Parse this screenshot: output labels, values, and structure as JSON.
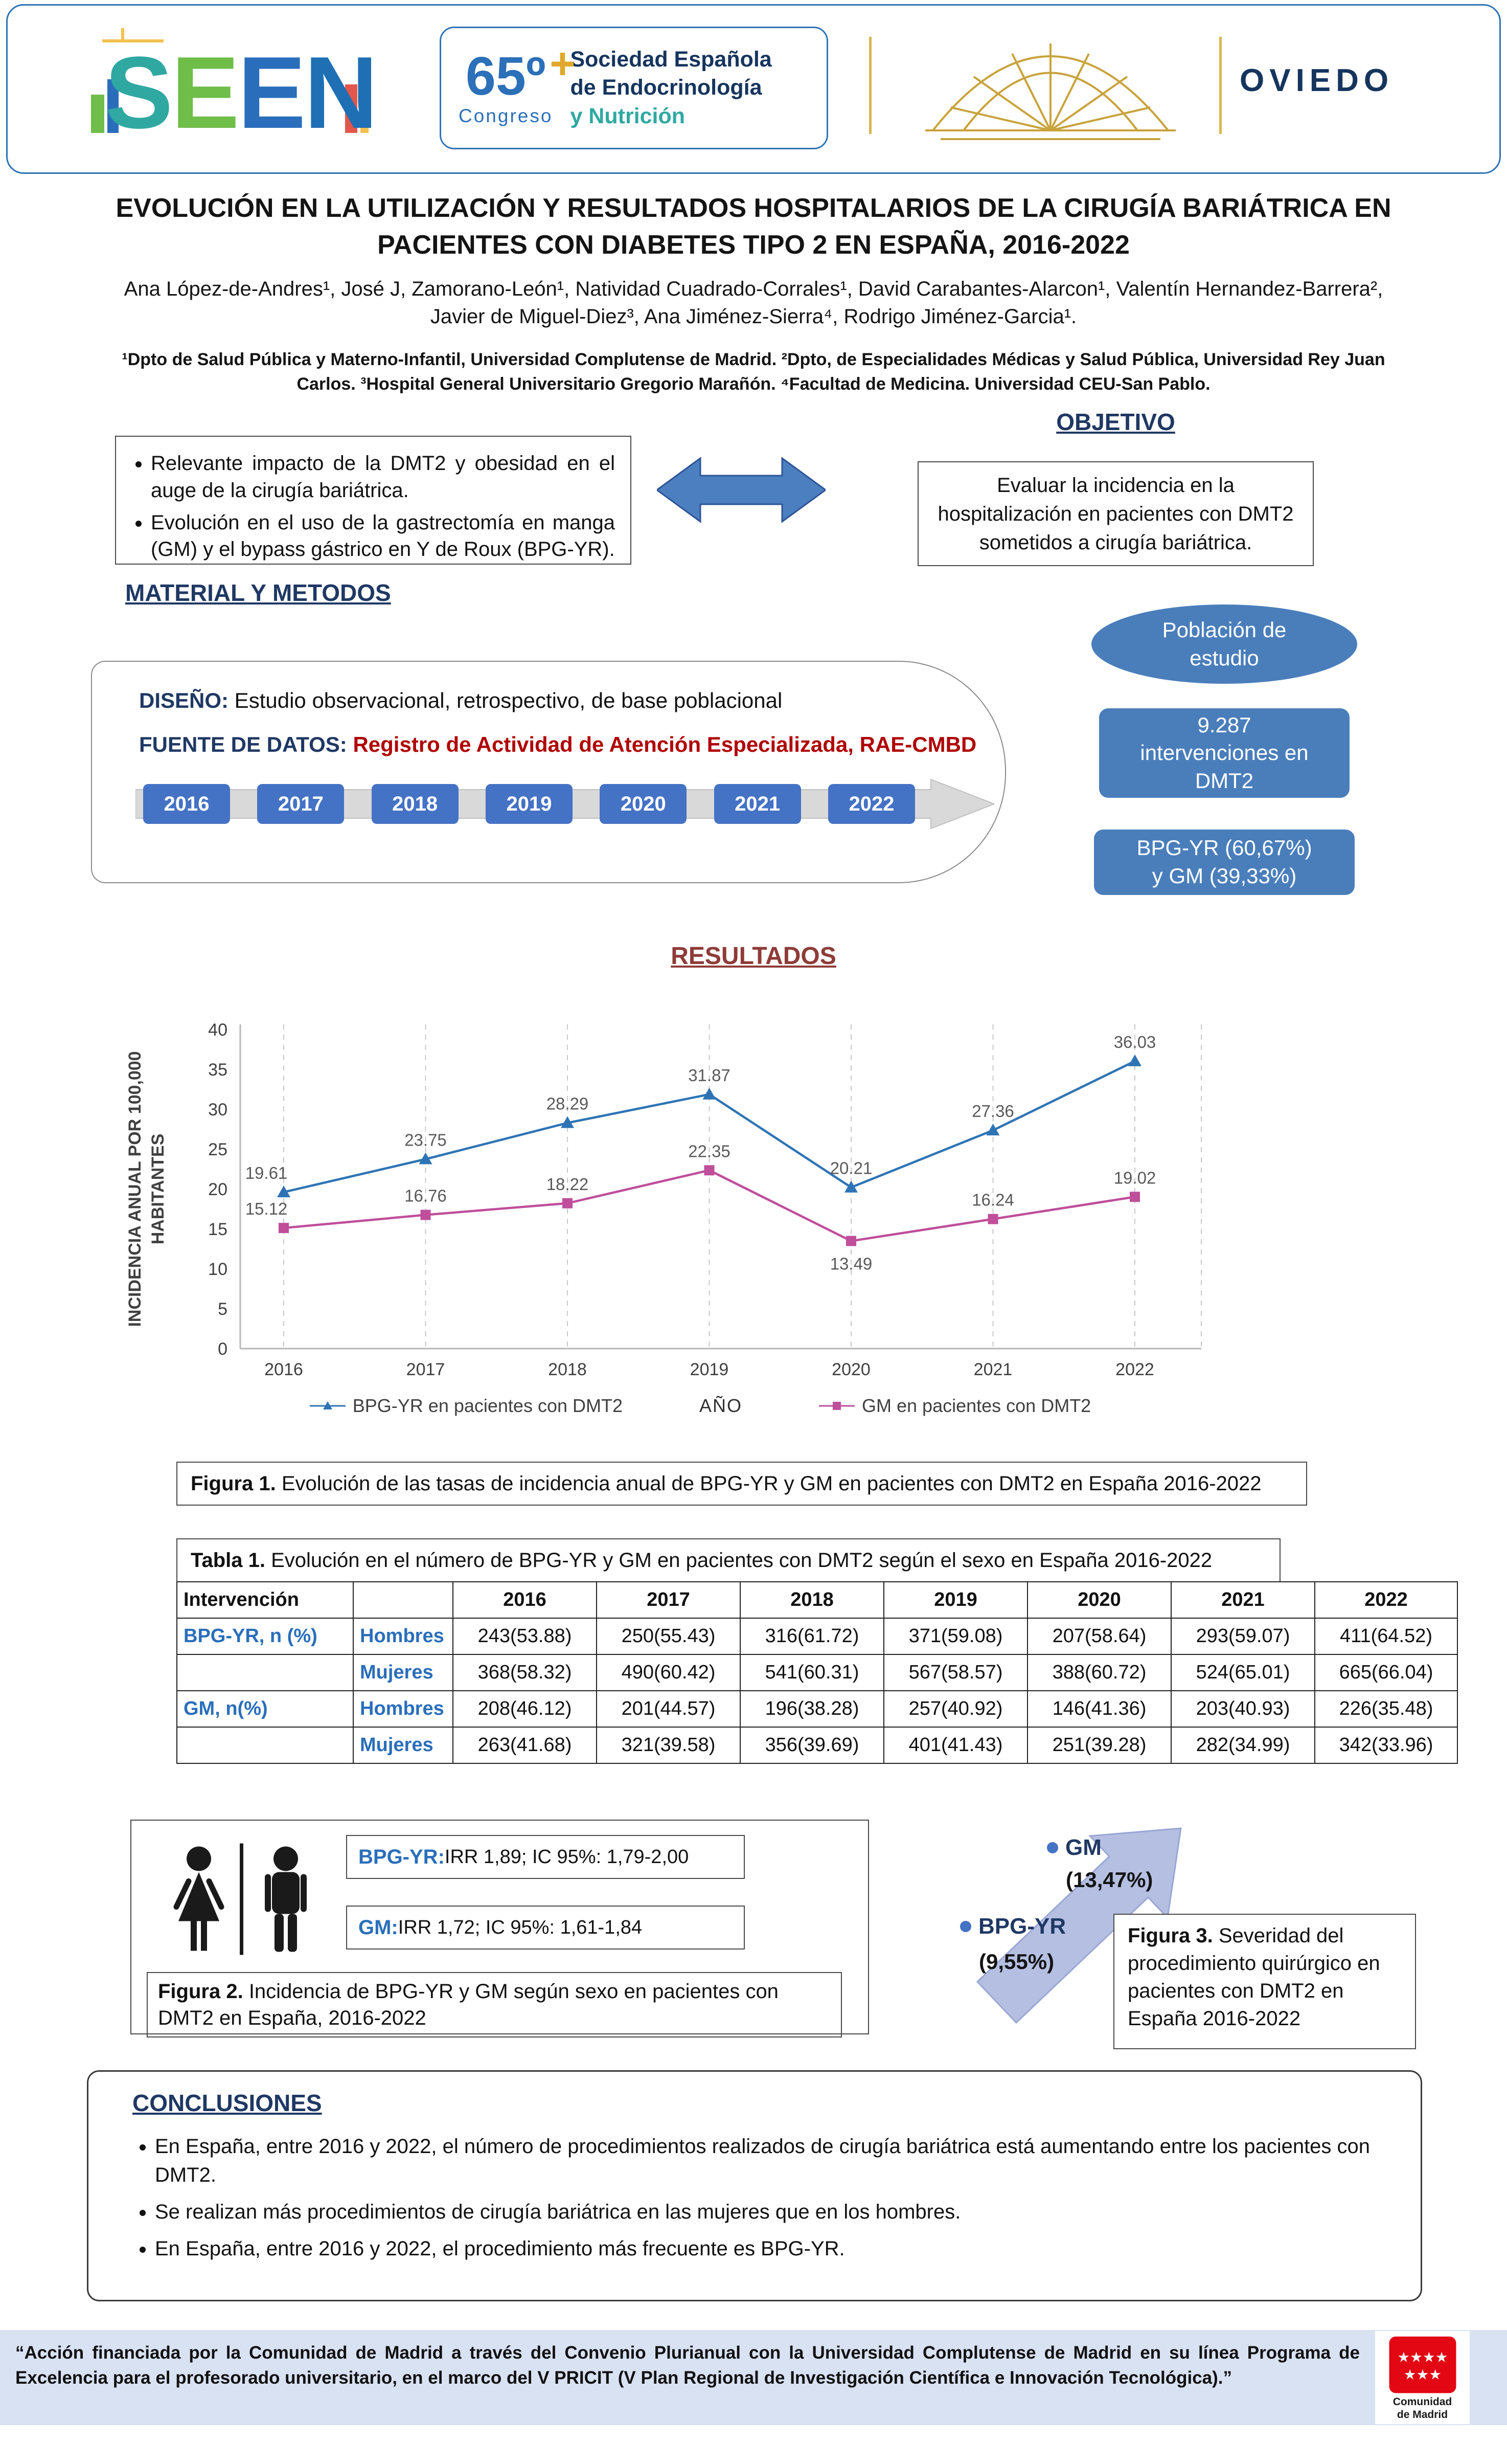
{
  "header": {
    "seen": "SEEN",
    "congress_number": "65º",
    "plus_glyph": "+",
    "congress_word": "Congreso",
    "society_line1": "Sociedad Española",
    "society_line2": "de Endocrinología",
    "society_line3": "y Nutrición",
    "city": "OVIEDO"
  },
  "title_block": {
    "line1": "EVOLUCIÓN EN LA UTILIZACIÓN Y RESULTADOS HOSPITALARIOS DE LA CIRUGÍA BARIÁTRICA EN",
    "line2": "PACIENTES CON DIABETES TIPO 2 EN ESPAÑA, 2016-2022",
    "authors": "Ana López-de-Andres¹, José J, Zamorano-León¹, Natividad Cuadrado-Corrales¹, David Carabantes-Alarcon¹, Valentín Hernandez-Barrera², Javier de Miguel-Diez³, Ana Jiménez-Sierra⁴, Rodrigo Jiménez-Garcia¹.",
    "affiliations": "¹Dpto de Salud Pública y Materno-Infantil, Universidad Complutense de Madrid. ²Dpto, de Especialidades Médicas y Salud Pública, Universidad Rey Juan Carlos. ³Hospital General Universitario Gregorio Marañón. ⁴Facultad de Medicina. Universidad CEU-San Pablo."
  },
  "intro": {
    "bullets": [
      "Relevante impacto de la DMT2 y obesidad en el auge de la cirugía bariátrica.",
      "Evolución en el uso de la gastrectomía en manga (GM) y el bypass gástrico en Y de Roux (BPG-YR)."
    ]
  },
  "objective": {
    "heading": "OBJETIVO",
    "text": "Evaluar la incidencia en la hospitalización en pacientes con DMT2 sometidos a cirugía bariátrica."
  },
  "methods": {
    "heading": "MATERIAL Y METODOS",
    "design_label": "DISEÑO:",
    "design_text": " Estudio observacional, retrospectivo, de base poblacional",
    "source_label": "FUENTE DE DATOS:",
    "source_text": " Registro de Actividad de Atención Especializada, RAE-CMBD",
    "years": [
      "2016",
      "2017",
      "2018",
      "2019",
      "2020",
      "2021",
      "2022"
    ]
  },
  "population": {
    "ellipse": "Población de estudio",
    "box1": "9.287 intervenciones en DMT2",
    "box2": "BPG-YR (60,67%) y GM (39,33%)"
  },
  "results_heading": "RESULTADOS",
  "chart_data": {
    "type": "line",
    "x": [
      "2016",
      "2017",
      "2018",
      "2019",
      "2020",
      "2021",
      "2022"
    ],
    "series": [
      {
        "name": "BPG-YR en pacientes con DMT2",
        "values": [
          19.61,
          23.75,
          28.29,
          31.87,
          20.21,
          27.36,
          36.03
        ],
        "color": "#2E74B5",
        "marker": "triangle"
      },
      {
        "name": "GM en pacientes con DMT2",
        "values": [
          15.12,
          16.76,
          18.22,
          22.35,
          13.49,
          16.24,
          19.02
        ],
        "color": "#BF4E9B",
        "marker": "square"
      }
    ],
    "xlabel": "AÑO",
    "ylabel_lines": [
      "INCIDENCIA ANUAL POR 100,000",
      "HABITANTES"
    ],
    "ylim": [
      0,
      40
    ],
    "ytick_step": 5,
    "grid": "vertical-dashed",
    "legend_position": "bottom"
  },
  "figure1": {
    "label": "Figura 1.",
    "text": " Evolución de las tasas de incidencia anual de BPG-YR y GM en pacientes con DMT2 en España 2016-2022"
  },
  "table1": {
    "title_label": "Tabla 1.",
    "title_text": " Evolución en el número de BPG-YR y GM en pacientes con DMT2 según el sexo en España 2016-2022",
    "header": [
      "Intervención",
      "",
      "2016",
      "2017",
      "2018",
      "2019",
      "2020",
      "2021",
      "2022"
    ],
    "rows": [
      {
        "group": "BPG-YR, n (%)",
        "sex": "Hombres",
        "values": [
          "243(53.88)",
          "250(55.43)",
          "316(61.72)",
          "371(59.08)",
          "207(58.64)",
          "293(59.07)",
          "411(64.52)"
        ]
      },
      {
        "group": "",
        "sex": "Mujeres",
        "values": [
          "368(58.32)",
          "490(60.42)",
          "541(60.31)",
          "567(58.57)",
          "388(60.72)",
          "524(65.01)",
          "665(66.04)"
        ]
      },
      {
        "group": "GM, n(%)",
        "sex": "Hombres",
        "values": [
          "208(46.12)",
          "201(44.57)",
          "196(38.28)",
          "257(40.92)",
          "146(41.36)",
          "203(40.93)",
          "226(35.48)"
        ]
      },
      {
        "group": "",
        "sex": "Mujeres",
        "values": [
          "263(41.68)",
          "321(39.58)",
          "356(39.69)",
          "401(41.43)",
          "251(39.28)",
          "282(34.99)",
          "342(33.96)"
        ]
      }
    ]
  },
  "figure2": {
    "bpgyr_label": "BPG-YR:",
    "bpgyr_text": " IRR 1,89; IC 95%: 1,79-2,00",
    "gm_label": "GM:",
    "gm_text": " IRR 1,72; IC 95%: 1,61-1,84",
    "caption_label": "Figura 2.",
    "caption_text": " Incidencia de BPG-YR y GM según sexo en pacientes con DMT2 en España, 2016-2022"
  },
  "figure3": {
    "gm_label": "GM",
    "gm_pct": "(13,47%)",
    "bpgyr_label": "BPG-YR",
    "bpgyr_pct": "(9,55%)",
    "caption_label": "Figura 3.",
    "caption_text": " Severidad del procedimiento quirúrgico en pacientes con DMT2 en España 2016-2022"
  },
  "conclusions": {
    "heading": "CONCLUSIONES",
    "bullets": [
      "En España, entre 2016 y 2022, el número de procedimientos realizados de cirugía bariátrica está aumentando entre los pacientes con DMT2.",
      "Se realizan más procedimientos de cirugía bariátrica en las mujeres que en los hombres.",
      "En España, entre 2016 y 2022, el procedimiento más frecuente es BPG-YR."
    ]
  },
  "footer": {
    "text": "“Acción financiada por la Comunidad de Madrid a través del Convenio Plurianual con la Universidad Complutense de Madrid en su línea Programa de Excelencia para el profesorado universitario, en el marco del V PRICIT (V Plan Regional de Investigación Científica e Innovación Tecnológica).”",
    "logo_line1": "Comunidad",
    "logo_line2": "de Madrid"
  }
}
